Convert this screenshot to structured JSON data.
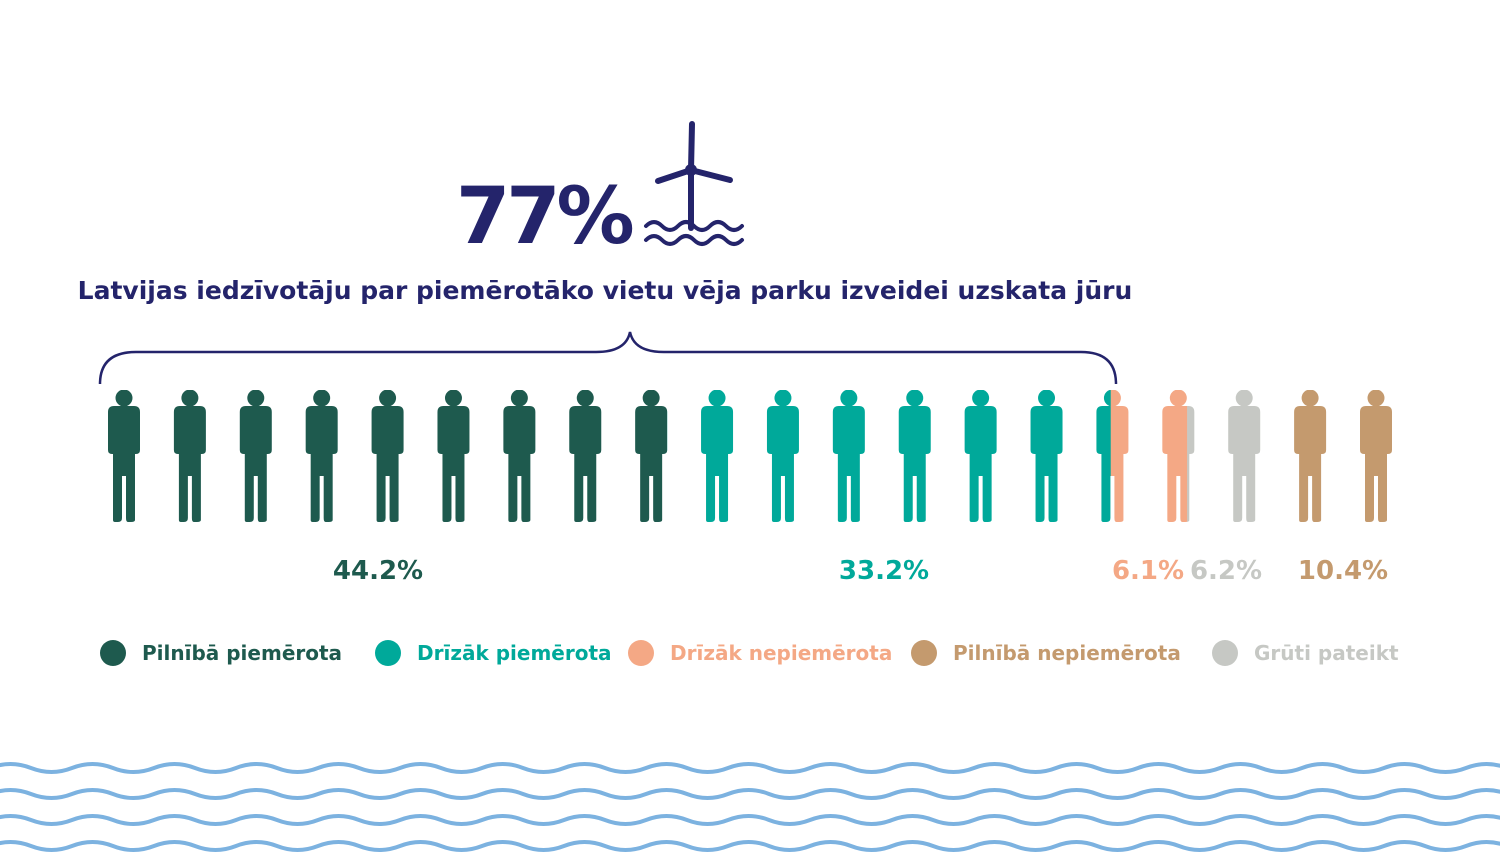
{
  "headline": {
    "value": "77%",
    "color": "#24246b"
  },
  "subtitle": "Latvijas iedzīvotāju par piemērotāko vietu vēja parku izveidei uzskata jūru",
  "chart_data": {
    "type": "pictogram",
    "title": "77%",
    "subtitle": "Latvijas iedzīvotāju par piemērotāko vietu vēja parku izveidei uzskata jūru",
    "brace_total": 77,
    "icon_count": 20,
    "categories": [
      {
        "name": "Pilnībā piemērota",
        "value": 44.2,
        "label": "44.2%",
        "color": "#1e5a4e"
      },
      {
        "name": "Drīzāk piemērota",
        "value": 33.2,
        "label": "33.2%",
        "color": "#00a99a"
      },
      {
        "name": "Drīzāk nepiemērota",
        "value": 6.1,
        "label": "6.1%",
        "color": "#f4a885"
      },
      {
        "name": "Grūti pateikt",
        "value": 6.2,
        "label": "6.2%",
        "color": "#c6c8c4"
      },
      {
        "name": "Pilnībā nepiemērota",
        "value": 10.4,
        "label": "10.4%",
        "color": "#c49a6e"
      }
    ]
  },
  "legend": [
    {
      "label": "Pilnībā piemērota",
      "color": "#1e5a4e"
    },
    {
      "label": "Drīzāk piemērota",
      "color": "#00a99a"
    },
    {
      "label": "Drīzāk nepiemērota",
      "color": "#f4a885"
    },
    {
      "label": "Pilnībā nepiemērota",
      "color": "#c49a6e"
    },
    {
      "label": "Grūti pateikt",
      "color": "#c6c8c4"
    }
  ],
  "colors": {
    "title": "#24246b",
    "waves": "#7cb2e0"
  }
}
